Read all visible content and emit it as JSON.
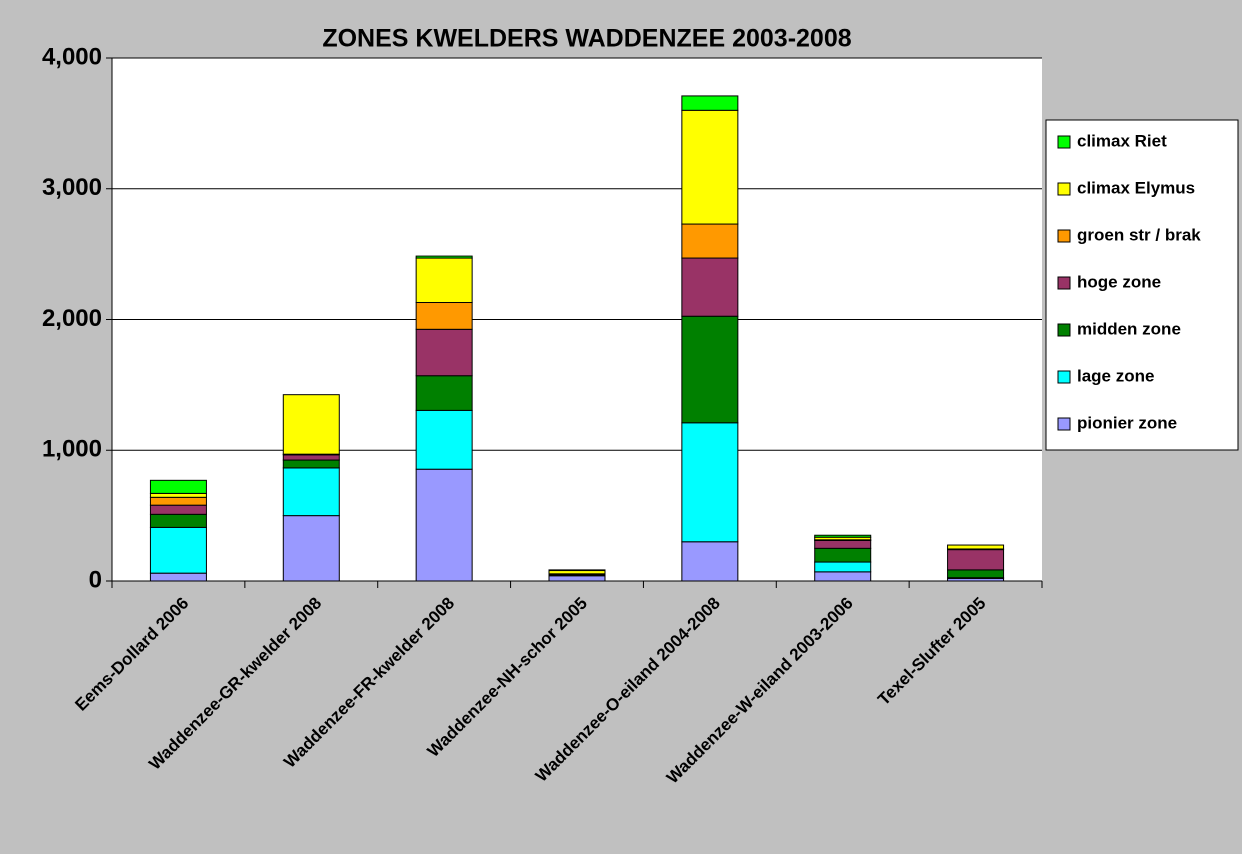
{
  "chart_data": {
    "type": "stacked_bar",
    "title": "ZONES KWELDERS WADDENZEE 2003-2008",
    "categories": [
      "Eems-Dollard 2006",
      "Waddenzee-GR-kwelder 2008",
      "Waddenzee-FR-kwelder 2008",
      "Waddenzee-NH-schor 2005",
      "Waddenzee-O-eiland 2004-2008",
      "Waddenzee-W-eiland 2003-2006",
      "Texel-Slufter 2005"
    ],
    "series": [
      {
        "name": "pionier zone",
        "color": "#9999ff",
        "values": [
          60,
          500,
          855,
          40,
          300,
          70,
          20
        ]
      },
      {
        "name": "lage zone",
        "color": "#00ffff",
        "values": [
          350,
          365,
          450,
          5,
          910,
          75,
          5
        ]
      },
      {
        "name": "midden zone",
        "color": "#008000",
        "values": [
          100,
          60,
          265,
          0,
          815,
          105,
          60
        ]
      },
      {
        "name": "hoge zone",
        "color": "#993366",
        "values": [
          70,
          40,
          355,
          5,
          445,
          60,
          155
        ]
      },
      {
        "name": "groen str / brak",
        "color": "#ff9900",
        "values": [
          60,
          5,
          205,
          5,
          260,
          5,
          5
        ]
      },
      {
        "name": "climax Elymus",
        "color": "#ffff00",
        "values": [
          30,
          455,
          340,
          25,
          870,
          20,
          30
        ]
      },
      {
        "name": "climax Riet",
        "color": "#00ff00",
        "values": [
          100,
          0,
          15,
          5,
          110,
          15,
          0
        ]
      }
    ],
    "ylim": [
      0,
      4000
    ],
    "yticks": [
      0,
      {
        "value": 1000,
        "label": "1,000"
      },
      {
        "value": 2000,
        "label": "2,000"
      },
      {
        "value": 3000,
        "label": "3,000"
      },
      {
        "value": 4000,
        "label": "4,000"
      }
    ],
    "grid": true,
    "legend": "right"
  }
}
